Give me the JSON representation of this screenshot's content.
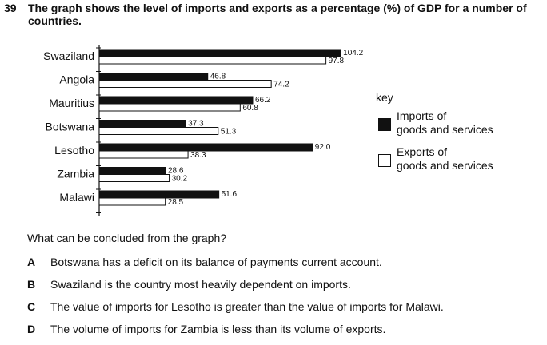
{
  "question": {
    "number": "39",
    "text": "The graph shows the level of imports and exports as a percentage (%) of GDP for a number of countries."
  },
  "chart_data": {
    "type": "bar",
    "orientation": "horizontal",
    "categories": [
      "Swaziland",
      "Angola",
      "Mauritius",
      "Botswana",
      "Lesotho",
      "Zambia",
      "Malawi"
    ],
    "series": [
      {
        "name": "Imports of goods and services",
        "values": [
          104.2,
          46.8,
          66.2,
          37.3,
          92.0,
          28.6,
          51.6
        ],
        "color": "#111111"
      },
      {
        "name": "Exports of goods and services",
        "values": [
          97.8,
          74.2,
          60.8,
          51.3,
          38.3,
          30.2,
          28.5
        ],
        "color": "#ffffff"
      }
    ],
    "value_labels": {
      "imports": [
        "104.2",
        "46.8",
        "66.2",
        "37.3",
        "92.0",
        "28.6",
        "51.6"
      ],
      "exports": [
        "97.8",
        "74.2",
        "60.8",
        "51.3",
        "38.3",
        "30.2",
        "28.5"
      ]
    },
    "xlim": [
      0,
      110
    ],
    "grid": false,
    "legend_placement": "right"
  },
  "key": {
    "title": "key",
    "imports_line1": "Imports of",
    "imports_line2": "goods and services",
    "exports_line1": "Exports of",
    "exports_line2": "goods and services"
  },
  "prompt": "What can be concluded from the graph?",
  "options": [
    {
      "letter": "A",
      "text": "Botswana has a deficit on its balance of payments current account."
    },
    {
      "letter": "B",
      "text": "Swaziland is the country most heavily dependent on imports."
    },
    {
      "letter": "C",
      "text": "The value of imports for Lesotho is greater than the value of imports for Malawi."
    },
    {
      "letter": "D",
      "text": "The volume of imports for Zambia is less than its volume of exports."
    }
  ]
}
